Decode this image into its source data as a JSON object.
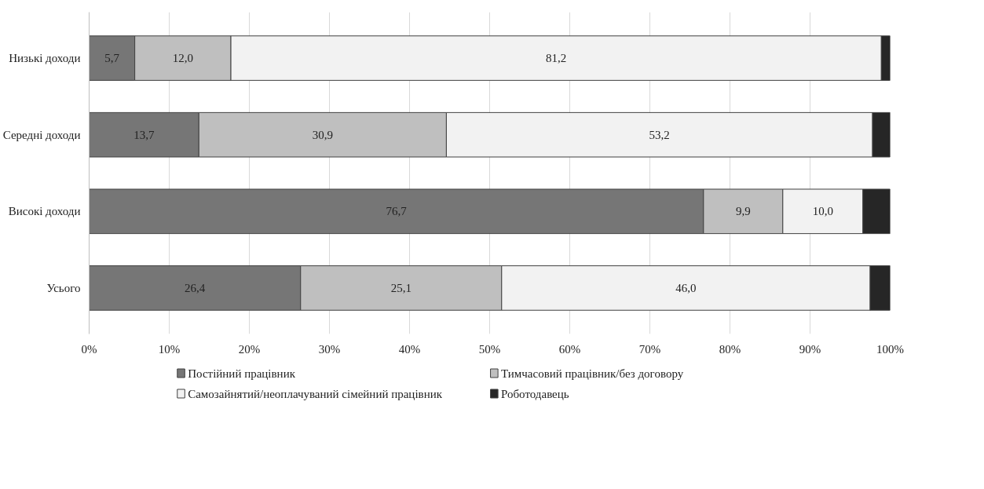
{
  "chart_data": {
    "type": "bar",
    "orientation": "horizontal",
    "stacked": true,
    "categories": [
      "Низькі доходи",
      "Середні доходи",
      "Високі доходи",
      "Усього"
    ],
    "series": [
      {
        "name": "Постійний працівник",
        "color": "#767676",
        "values": [
          5.7,
          13.7,
          76.7,
          26.4
        ],
        "value_labels": [
          "5,7",
          "13,7",
          "76,7",
          "26,4"
        ]
      },
      {
        "name": "Тимчасовий працівник/без договору",
        "color": "#bfbfbf",
        "values": [
          12.0,
          30.9,
          9.9,
          25.1
        ],
        "value_labels": [
          "12,0",
          "30,9",
          "9,9",
          "25,1"
        ]
      },
      {
        "name": "Самозайнятий/неоплачуваний сімейний працівник",
        "color": "#f2f2f2",
        "values": [
          81.2,
          53.2,
          10.0,
          46.0
        ],
        "value_labels": [
          "81,2",
          "53,2",
          "10,0",
          "46,0"
        ]
      },
      {
        "name": "Роботодавець",
        "color": "#262626",
        "values": [
          1.1,
          2.2,
          3.4,
          2.5
        ]
      }
    ],
    "xlim": [
      0,
      100
    ],
    "xticks": [
      {
        "value": 0,
        "label": "0%"
      },
      {
        "value": 10,
        "label": "10%"
      },
      {
        "value": 20,
        "label": "20%"
      },
      {
        "value": 30,
        "label": "30%"
      },
      {
        "value": 40,
        "label": "40%"
      },
      {
        "value": 50,
        "label": "50%"
      },
      {
        "value": 60,
        "label": "60%"
      },
      {
        "value": 70,
        "label": "70%"
      },
      {
        "value": 80,
        "label": "80%"
      },
      {
        "value": 90,
        "label": "90%"
      },
      {
        "value": 100,
        "label": "100%"
      }
    ],
    "grid": "x",
    "legend": "bottom"
  }
}
